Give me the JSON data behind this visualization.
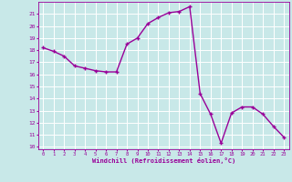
{
  "x": [
    0,
    1,
    2,
    3,
    4,
    5,
    6,
    7,
    8,
    9,
    10,
    11,
    12,
    13,
    14,
    15,
    16,
    17,
    18,
    19,
    20,
    21,
    22,
    23
  ],
  "y": [
    18.2,
    17.9,
    17.5,
    16.7,
    16.5,
    16.3,
    16.2,
    16.2,
    18.5,
    19.0,
    20.2,
    20.7,
    21.1,
    21.2,
    21.6,
    14.4,
    12.7,
    10.3,
    12.8,
    13.3,
    13.3,
    12.7,
    11.7,
    10.8
  ],
  "line_color": "#990099",
  "marker": "+",
  "marker_color": "#990099",
  "background_color": "#c8e8e8",
  "grid_color": "#ffffff",
  "xlabel": "Windchill (Refroidissement éolien,°C)",
  "xlabel_color": "#990099",
  "tick_color": "#990099",
  "ylim": [
    9.8,
    22.0
  ],
  "xlim": [
    -0.5,
    23.5
  ],
  "yticks": [
    10,
    11,
    12,
    13,
    14,
    15,
    16,
    17,
    18,
    19,
    20,
    21
  ],
  "xticks": [
    0,
    1,
    2,
    3,
    4,
    5,
    6,
    7,
    8,
    9,
    10,
    11,
    12,
    13,
    14,
    15,
    16,
    17,
    18,
    19,
    20,
    21,
    22,
    23
  ],
  "line_width": 1.0,
  "marker_size": 3.5
}
